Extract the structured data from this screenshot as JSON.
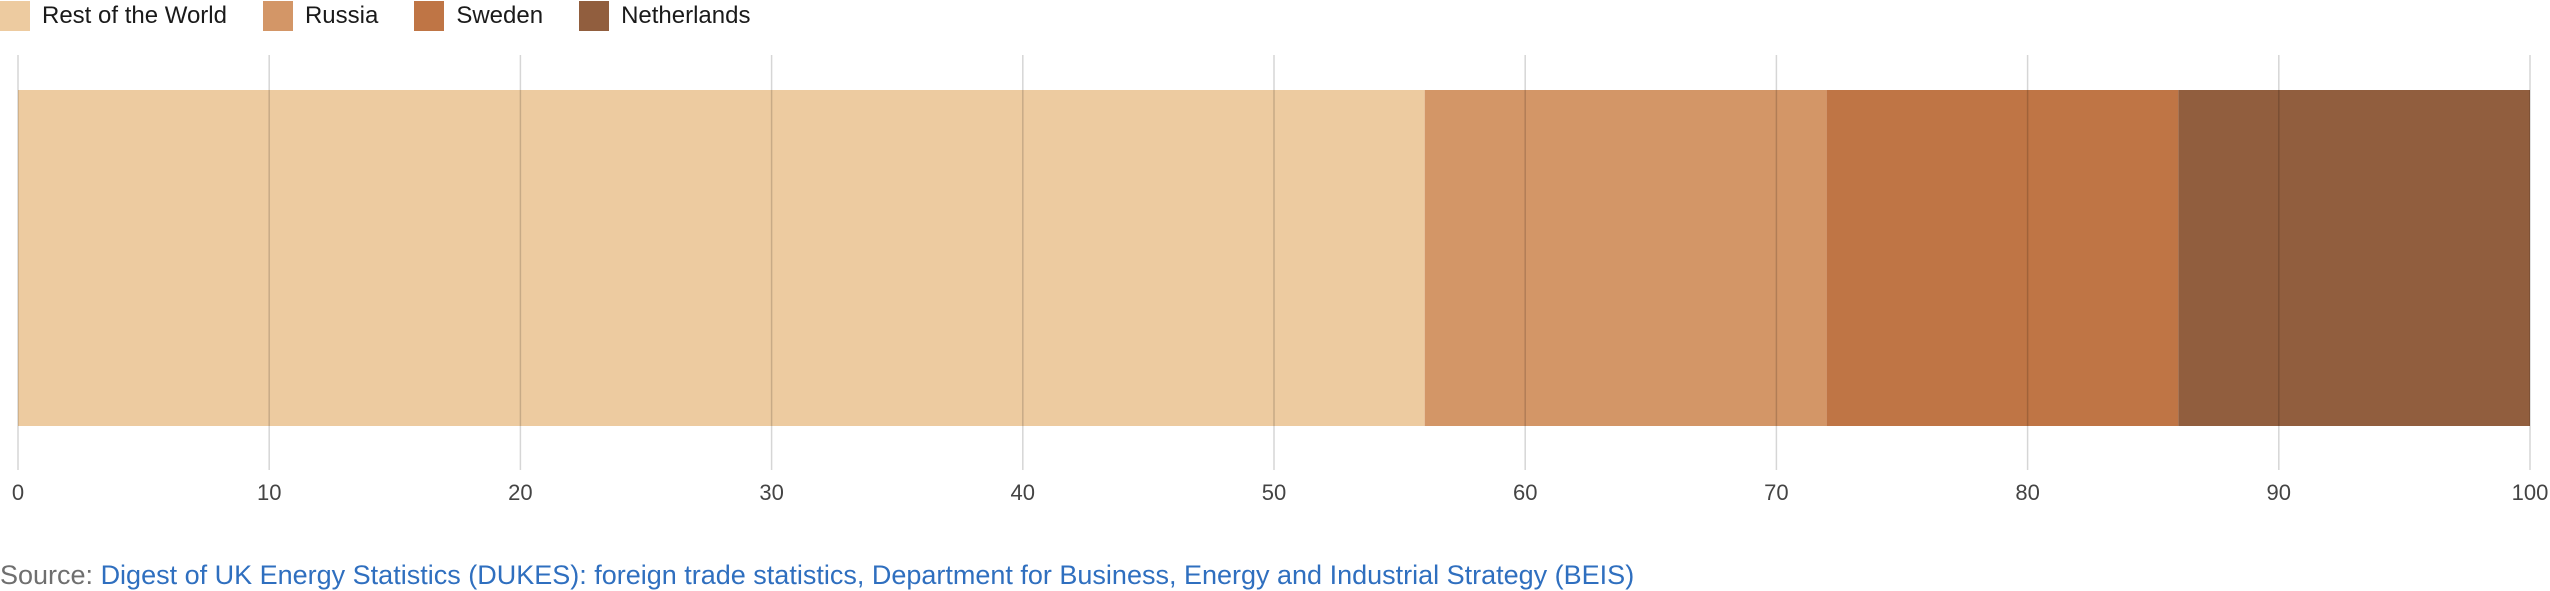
{
  "chart_data": {
    "type": "bar",
    "orientation": "horizontal",
    "stacked": true,
    "categories": [
      ""
    ],
    "series": [
      {
        "name": "Rest of the World",
        "values": [
          56
        ],
        "color": "#edcba0"
      },
      {
        "name": "Russia",
        "values": [
          16
        ],
        "color": "#d39667"
      },
      {
        "name": "Sweden",
        "values": [
          14
        ],
        "color": "#bf7545"
      },
      {
        "name": "Netherlands",
        "values": [
          14
        ],
        "color": "#915e3e"
      }
    ],
    "xlim": [
      0,
      100
    ],
    "x_ticks": [
      "0",
      "10",
      "20",
      "30",
      "40",
      "50",
      "60",
      "70",
      "80",
      "90",
      "100"
    ],
    "grid": true,
    "legend_position": "top-left"
  },
  "source": {
    "prefix": "Source: ",
    "link_text": "Digest of UK Energy Statistics (DUKES): foreign trade statistics, Department for Business, Energy and Industrial Strategy (BEIS)"
  }
}
